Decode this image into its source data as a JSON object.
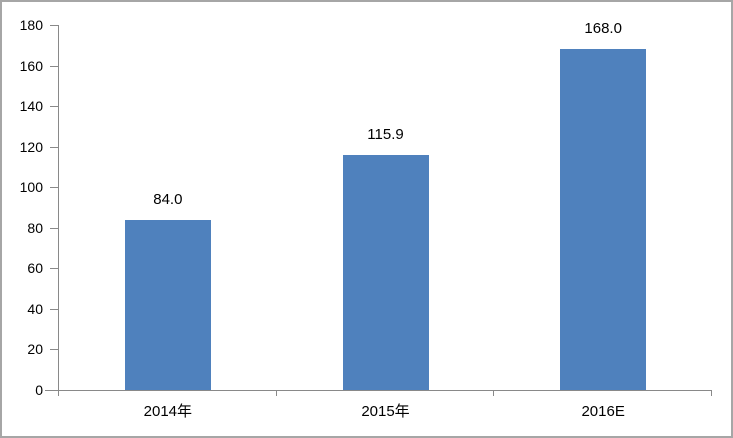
{
  "chart_data": {
    "type": "bar",
    "title": "",
    "categories": [
      "2014年",
      "2015年",
      "2016E"
    ],
    "values": [
      84.0,
      115.9,
      168.0
    ],
    "value_labels": [
      "84.0",
      "115.9",
      "168.0"
    ],
    "ylim": [
      0,
      180
    ],
    "ytick_step": 20,
    "ytick_labels": [
      "0",
      "20",
      "40",
      "60",
      "80",
      "100",
      "120",
      "140",
      "160",
      "180"
    ],
    "grid": false,
    "legend": false,
    "tick_marks": "outside",
    "colors": {
      "bar": "#4f81bd",
      "axis": "#898989",
      "text": "#000000",
      "background": "#ffffff",
      "frame_border": "#a6a6a6"
    }
  }
}
